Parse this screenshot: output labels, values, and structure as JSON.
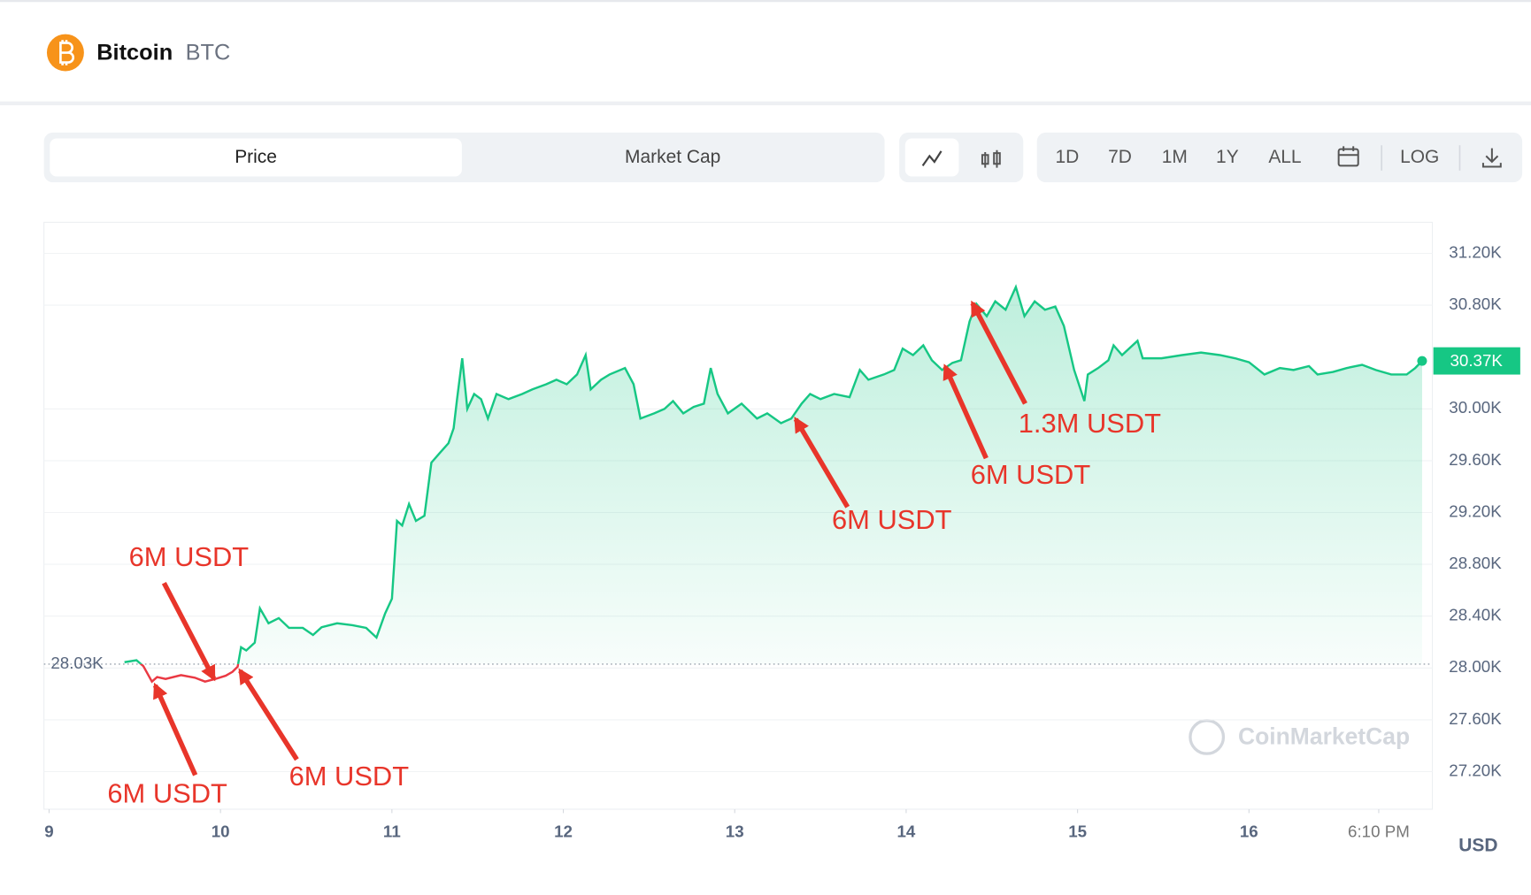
{
  "header": {
    "name": "Bitcoin",
    "symbol": "BTC"
  },
  "tabs": [
    "Price",
    "Market Cap"
  ],
  "ranges": [
    "1D",
    "7D",
    "1M",
    "1Y",
    "ALL"
  ],
  "log_button": "LOG",
  "watermark": "CoinMarketCap",
  "chart_data": {
    "type": "line",
    "color": "#16c784",
    "down_color": "#ea3943",
    "x": [
      9.44,
      9.51,
      9.55,
      9.6,
      9.63,
      9.68,
      9.77,
      9.85,
      9.91,
      9.97,
      10.03,
      10.07,
      10.1,
      10.12,
      10.15,
      10.2,
      10.23,
      10.28,
      10.34,
      10.4,
      10.48,
      10.54,
      10.59,
      10.68,
      10.77,
      10.85,
      10.91,
      10.96,
      11.0,
      11.03,
      11.06,
      11.1,
      11.14,
      11.19,
      11.23,
      11.28,
      11.33,
      11.36,
      11.38,
      11.41,
      11.44,
      11.48,
      11.52,
      11.56,
      11.61,
      11.68,
      11.76,
      11.82,
      11.9,
      11.96,
      12.02,
      12.08,
      12.13,
      12.16,
      12.22,
      12.27,
      12.36,
      12.41,
      12.45,
      12.53,
      12.59,
      12.64,
      12.7,
      12.76,
      12.82,
      12.86,
      12.9,
      12.96,
      13.04,
      13.13,
      13.19,
      13.27,
      13.33,
      13.39,
      13.44,
      13.5,
      13.58,
      13.67,
      13.73,
      13.78,
      13.87,
      13.93,
      13.98,
      14.04,
      14.1,
      14.15,
      14.21,
      14.27,
      14.32,
      14.37,
      14.41,
      14.47,
      14.52,
      14.58,
      14.64,
      14.69,
      14.75,
      14.81,
      14.87,
      14.92,
      14.98,
      15.04,
      15.06,
      15.12,
      15.18,
      15.21,
      15.26,
      15.35,
      15.38,
      15.49,
      15.61,
      15.72,
      15.83,
      15.92,
      16.0,
      16.09,
      16.18,
      16.26,
      16.35,
      16.4,
      16.49,
      16.57,
      16.66,
      16.74,
      16.83,
      16.92,
      16.97,
      17.01
    ],
    "values": [
      28045,
      28060,
      28015,
      27895,
      27930,
      27915,
      27945,
      27925,
      27895,
      27915,
      27940,
      27970,
      28010,
      28160,
      28135,
      28195,
      28460,
      28345,
      28385,
      28310,
      28310,
      28255,
      28315,
      28345,
      28330,
      28310,
      28235,
      28420,
      28535,
      29135,
      29100,
      29265,
      29135,
      29175,
      29585,
      29660,
      29735,
      29850,
      30075,
      30390,
      30000,
      30115,
      30075,
      29925,
      30115,
      30075,
      30115,
      30150,
      30190,
      30225,
      30190,
      30265,
      30415,
      30150,
      30225,
      30265,
      30315,
      30190,
      29925,
      29965,
      30000,
      30060,
      29965,
      30015,
      30040,
      30315,
      30115,
      29965,
      30040,
      29925,
      29965,
      29890,
      29925,
      30040,
      30115,
      30075,
      30115,
      30090,
      30300,
      30225,
      30265,
      30300,
      30465,
      30415,
      30490,
      30375,
      30300,
      30355,
      30375,
      30675,
      30810,
      30715,
      30830,
      30765,
      30940,
      30715,
      30830,
      30765,
      30790,
      30640,
      30300,
      30060,
      30265,
      30315,
      30375,
      30490,
      30415,
      30525,
      30390,
      30390,
      30415,
      30435,
      30415,
      30390,
      30360,
      30265,
      30315,
      30300,
      30330,
      30265,
      30285,
      30315,
      30340,
      30300,
      30265,
      30265,
      30315,
      30370
    ],
    "baseline": {
      "value": 28030,
      "label": "28.03K"
    },
    "current_price": {
      "value": 30370,
      "label": "30.37K"
    },
    "xlim": [
      8.97,
      17.07
    ],
    "xticks": [
      9,
      10,
      11,
      12,
      13,
      14,
      15,
      16,
      {
        "value": 16.757,
        "label": "6:10 PM"
      }
    ],
    "ylim": [
      26910,
      31440
    ],
    "yticks": [
      {
        "value": 27200,
        "label": "27.20K"
      },
      {
        "value": 27600,
        "label": "27.60K"
      },
      {
        "value": 28000,
        "label": "28.00K"
      },
      {
        "value": 28400,
        "label": "28.40K"
      },
      {
        "value": 28800,
        "label": "28.80K"
      },
      {
        "value": 29200,
        "label": "29.20K"
      },
      {
        "value": 29600,
        "label": "29.60K"
      },
      {
        "value": 30000,
        "label": "30.00K"
      },
      {
        "value": 30800,
        "label": "30.80K"
      },
      {
        "value": 31200,
        "label": "31.20K"
      }
    ],
    "y_unit": "USD",
    "grid": true,
    "annotations": [
      "6M USDT",
      "6M USDT",
      "6M USDT",
      "6M USDT",
      "6M USDT",
      "1.3M USDT"
    ]
  }
}
